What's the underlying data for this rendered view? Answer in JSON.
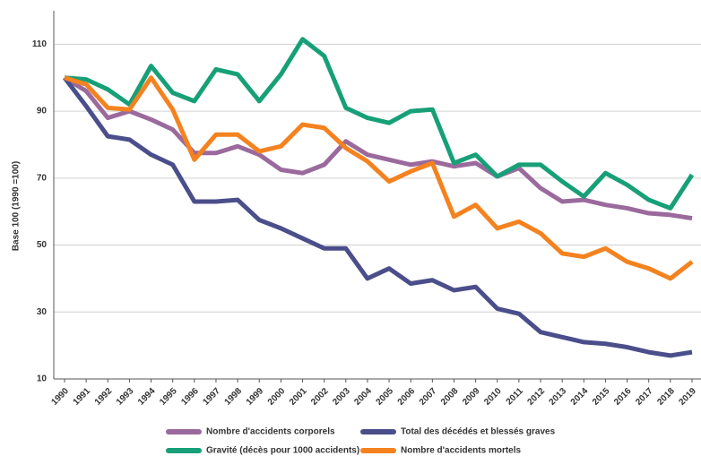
{
  "chart_data": {
    "type": "line",
    "y_label": "Base 100 (1990 =100)",
    "categories": [
      "1990",
      "1991",
      "1992",
      "1993",
      "1994",
      "1995",
      "1996",
      "1997",
      "1998",
      "1999",
      "2000",
      "2001",
      "2002",
      "2003",
      "2004",
      "2005",
      "2006",
      "2007",
      "2008",
      "2009",
      "2010",
      "2011",
      "2012",
      "2013",
      "2014",
      "2015",
      "2016",
      "2017",
      "2018",
      "2019"
    ],
    "ylim": [
      10,
      120
    ],
    "yticks": [
      10,
      30,
      50,
      70,
      90,
      110
    ],
    "grid": true,
    "legend": "bottom",
    "series": [
      {
        "name": "Nombre d'accidents corporels",
        "color": "#9b6a9d",
        "values": [
          100,
          96,
          88,
          90,
          87.5,
          84.5,
          77.5,
          77.5,
          79.5,
          77,
          72.5,
          71.5,
          74,
          81,
          77,
          75.5,
          74,
          75,
          73.5,
          74.5,
          70.5,
          73,
          67,
          63,
          63.5,
          62,
          61,
          59.5,
          59,
          58
        ]
      },
      {
        "name": "Total des décédés et blessés graves",
        "color": "#4a4e8a",
        "values": [
          100,
          91.5,
          82.5,
          81.5,
          77,
          74,
          63,
          63,
          63.5,
          57.5,
          55,
          52,
          49,
          49,
          40,
          43,
          38.5,
          39.5,
          36.5,
          37.5,
          31,
          29.5,
          24,
          22.5,
          21,
          20.5,
          19.5,
          18,
          17,
          18
        ]
      },
      {
        "name": "Gravité (décès pour 1000 accidents)",
        "color": "#17a077",
        "values": [
          100,
          99.5,
          96.5,
          92,
          103.5,
          95.5,
          93,
          102.5,
          101,
          93,
          101,
          111.5,
          106.5,
          91,
          88,
          86.5,
          90,
          90.5,
          74.5,
          77,
          70.5,
          74,
          74,
          69,
          64.5,
          71.5,
          68,
          63.5,
          61,
          71
        ]
      },
      {
        "name": "Nombre d'accidents mortels",
        "color": "#f4821f",
        "values": [
          100,
          98,
          91,
          90.5,
          100,
          90.5,
          75.5,
          83,
          83,
          78,
          79.5,
          86,
          85,
          79,
          75,
          69,
          72,
          74.5,
          58.5,
          62,
          55,
          57,
          53.5,
          47.5,
          46.5,
          49,
          45,
          43,
          40,
          45
        ]
      }
    ]
  }
}
